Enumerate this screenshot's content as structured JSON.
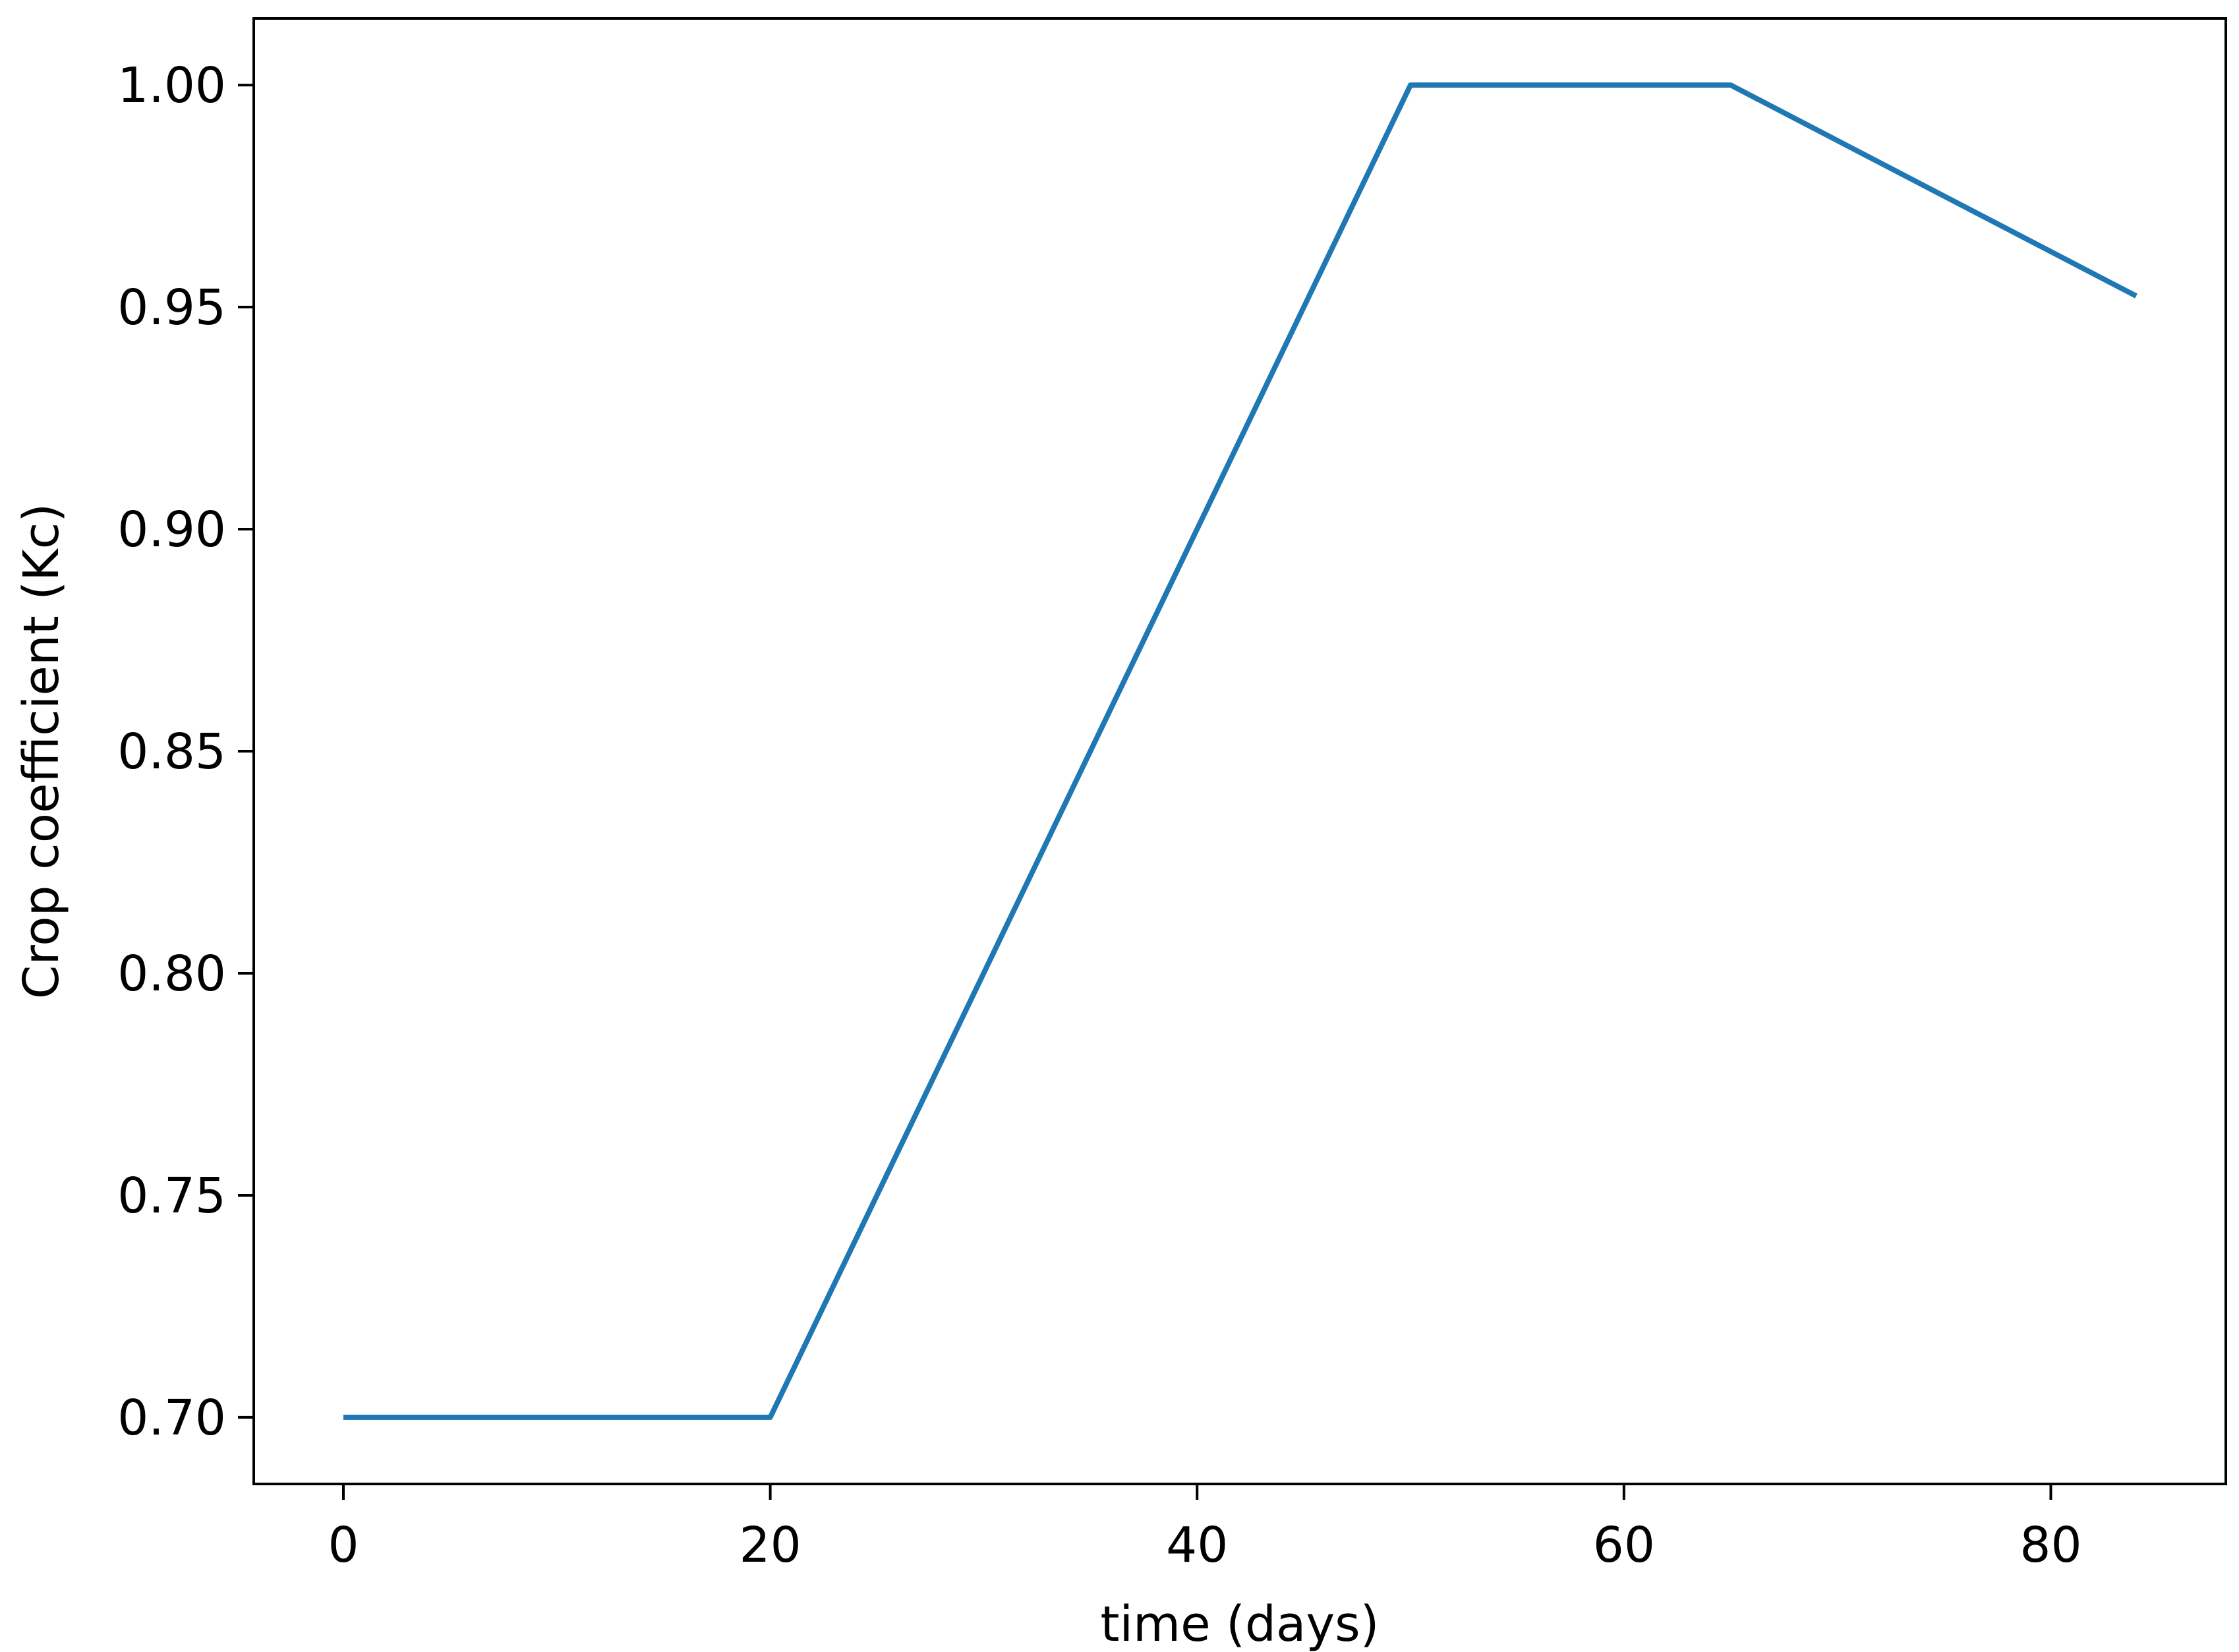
{
  "chart_data": {
    "type": "line",
    "title": "",
    "xlabel": "time (days)",
    "ylabel": "Crop coefficient (Kc)",
    "xlim": [
      -4.2,
      88.2
    ],
    "ylim": [
      0.685,
      1.015
    ],
    "xticks": [
      0,
      20,
      40,
      60,
      80
    ],
    "xtick_labels": [
      "0",
      "20",
      "40",
      "60",
      "80"
    ],
    "yticks": [
      0.7,
      0.75,
      0.8,
      0.85,
      0.9,
      0.95,
      1.0
    ],
    "ytick_labels": [
      "0.70",
      "0.75",
      "0.80",
      "0.85",
      "0.90",
      "0.95",
      "1.00"
    ],
    "grid": false,
    "series": [
      {
        "color": "#1f77b4",
        "x": [
          0,
          20,
          50,
          65,
          84
        ],
        "y": [
          0.7,
          0.7,
          1.0,
          1.0,
          0.9525
        ]
      }
    ]
  }
}
